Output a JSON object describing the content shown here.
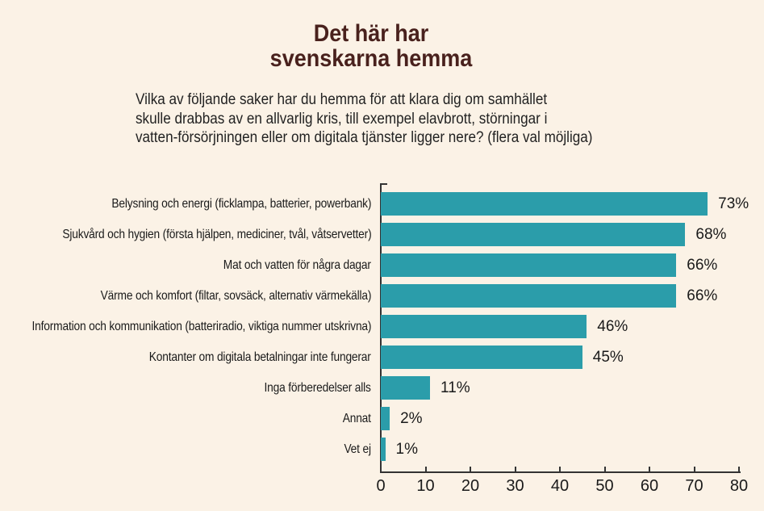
{
  "theme": {
    "background": "#fbf2e6",
    "bar_color": "#2b9daa",
    "title_color": "#49211d",
    "text_color": "#1a1a1a",
    "axis_color": "#333333"
  },
  "title": {
    "lines": [
      "Det här har",
      "svenskarna hemma"
    ]
  },
  "subtitle": {
    "lines": [
      "Vilka av följande saker har du hemma för att klara dig om samhället",
      "skulle drabbas av en allvarlig kris, till exempel elavbrott, störningar i",
      "vatten-försörjningen eller om digitala tjänster ligger nere? (flera val möjliga)"
    ]
  },
  "chart_data": {
    "type": "bar",
    "orientation": "horizontal",
    "title": "Det här har svenskarna hemma",
    "categories": [
      "Belysning och energi (ficklampa, batterier, powerbank)",
      "Sjukvård och hygien (första hjälpen, mediciner, tvål, våtservetter)",
      "Mat och vatten för några dagar",
      "Värme och komfort (filtar, sovsäck, alternativ värmekälla)",
      "Information och kommunikation (batteriradio, viktiga nummer utskrivna)",
      "Kontanter om digitala betalningar inte fungerar",
      "Inga förberedelser alls",
      "Annat",
      "Vet ej"
    ],
    "values": [
      73,
      68,
      66,
      66,
      46,
      45,
      11,
      2,
      1
    ],
    "value_labels": [
      "73%",
      "68%",
      "66%",
      "66%",
      "46%",
      "45%",
      "11%",
      "2%",
      "1%"
    ],
    "xlabel": "",
    "ylabel": "",
    "xlim": [
      0,
      80
    ],
    "x_ticks": [
      0,
      10,
      20,
      30,
      40,
      50,
      60,
      70,
      80
    ],
    "grid": false,
    "legend": null
  }
}
